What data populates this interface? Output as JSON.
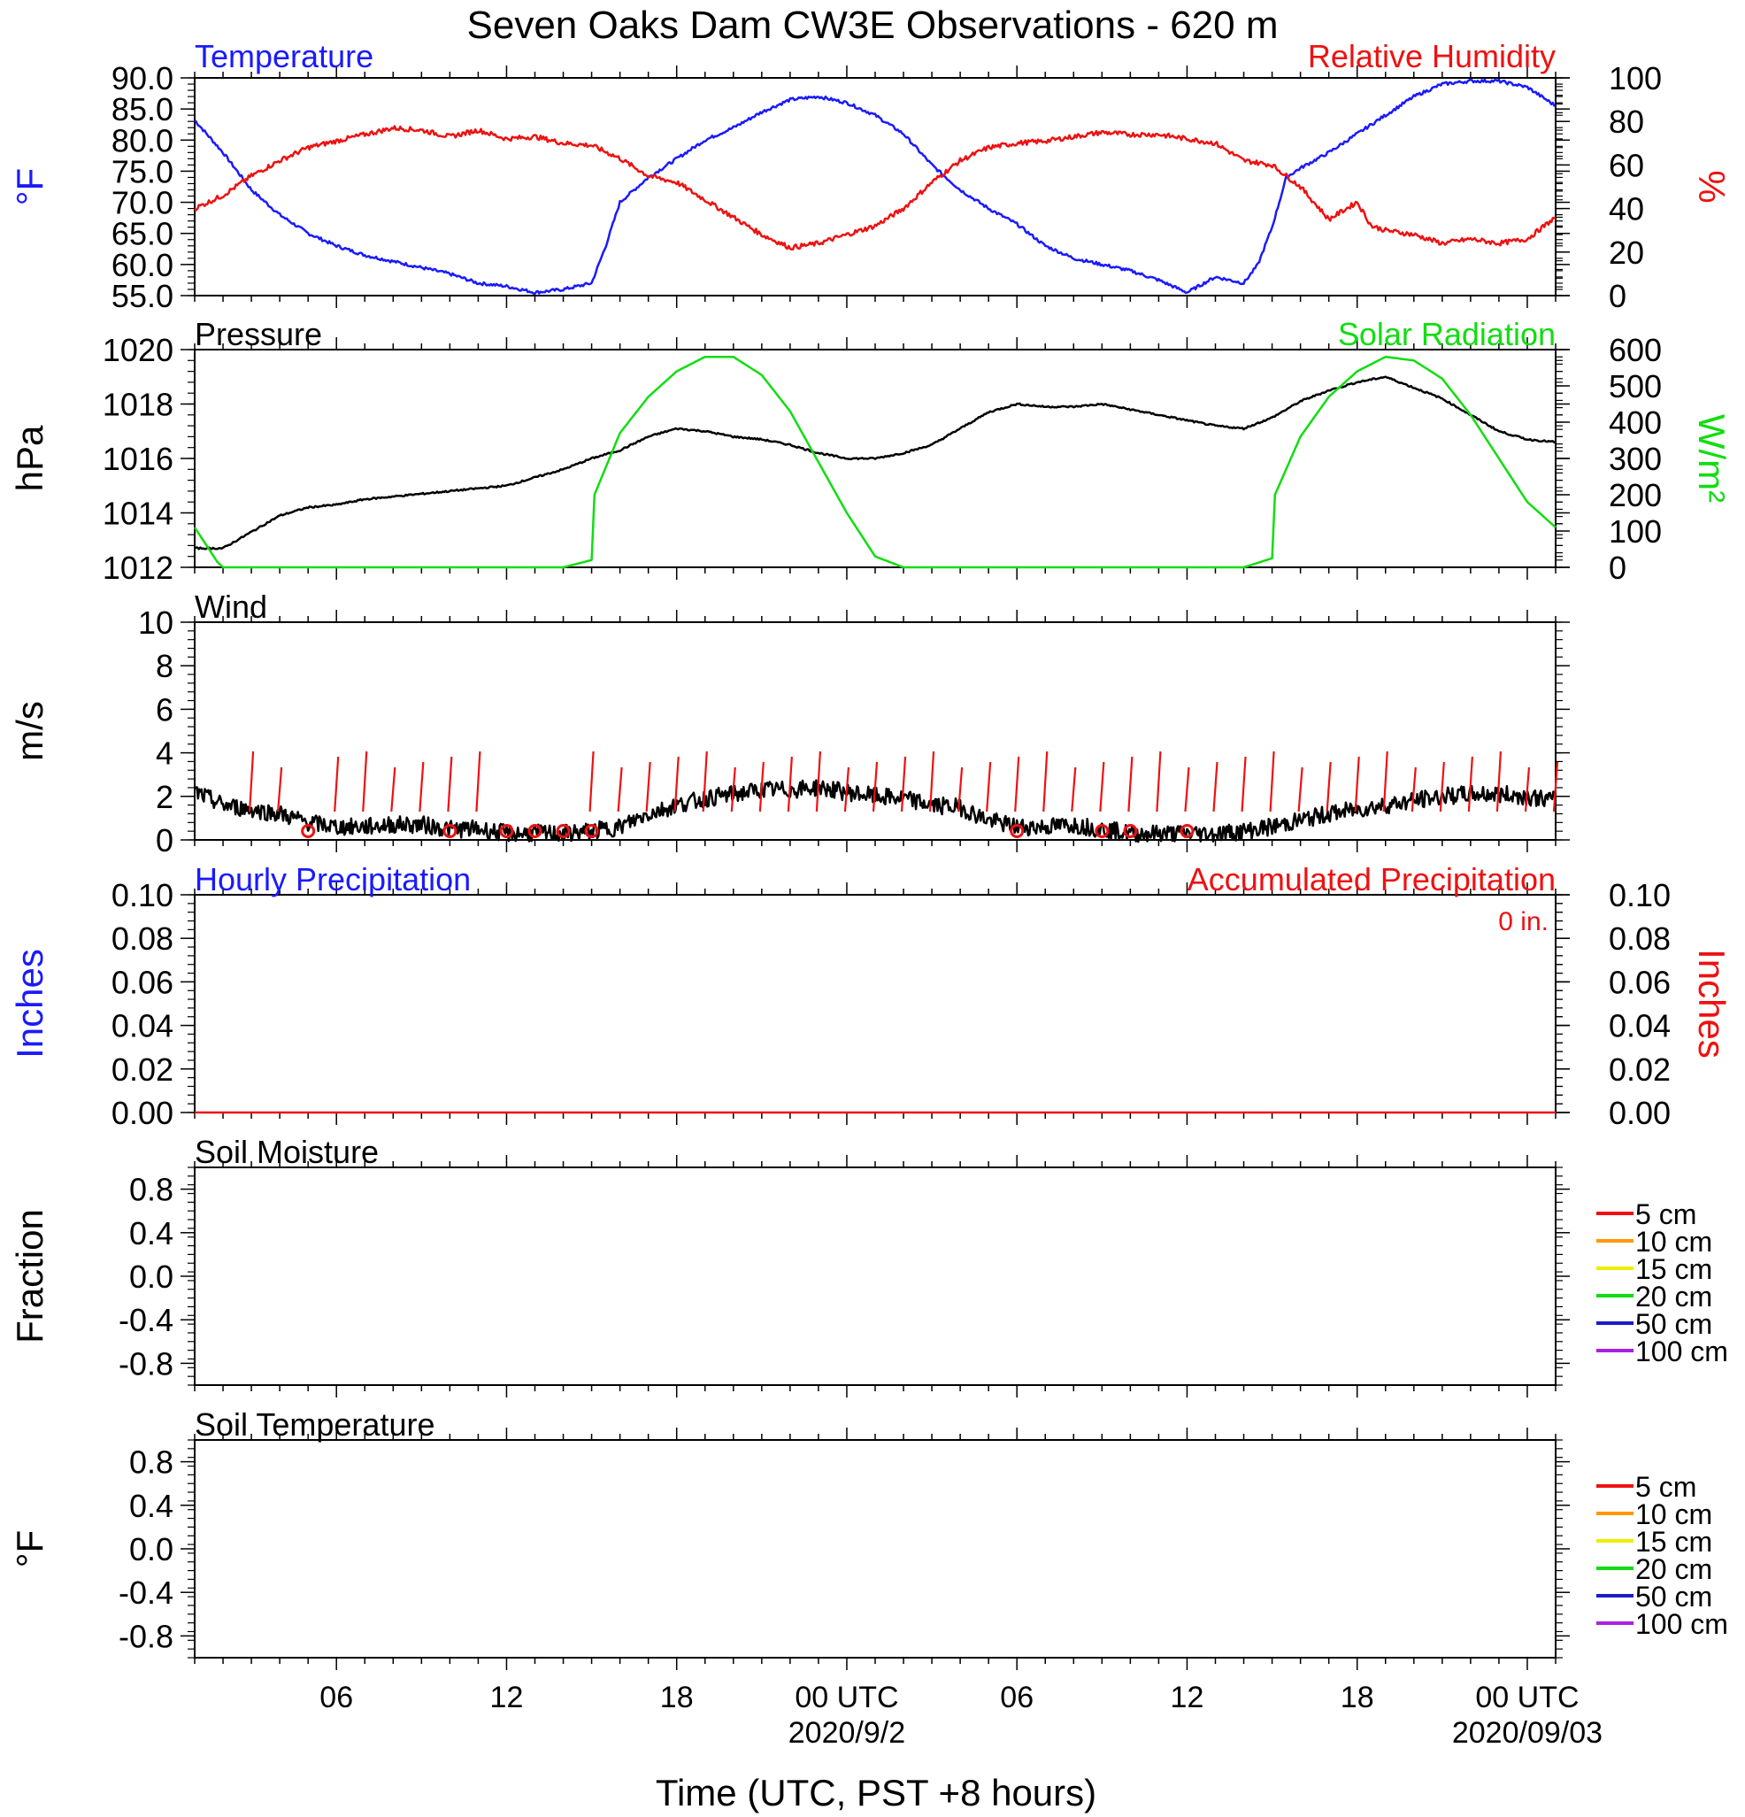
{
  "title": "Seven Oaks Dam CW3E Observations - 620 m",
  "x_axis": {
    "label": "Time (UTC, PST +8 hours)",
    "ticks": [
      {
        "t": 6,
        "label": "06"
      },
      {
        "t": 12,
        "label": "12"
      },
      {
        "t": 18,
        "label": "18"
      },
      {
        "t": 24,
        "label": "00 UTC"
      },
      {
        "t": 30,
        "label": "06"
      },
      {
        "t": 36,
        "label": "12"
      },
      {
        "t": 42,
        "label": "18"
      },
      {
        "t": 48,
        "label": "00 UTC"
      }
    ],
    "dates": [
      {
        "t": 24,
        "label": "2020/9/2"
      },
      {
        "t": 48,
        "label": "2020/09/03"
      }
    ],
    "range_hours": [
      1,
      49
    ]
  },
  "colors": {
    "blue": "#1a1aff",
    "red": "#ee1111",
    "green": "#11dd11",
    "black": "#000000"
  },
  "chart_data": [
    {
      "type": "line",
      "panel": "temperature_humidity",
      "left_title": "Temperature",
      "right_title": "Relative Humidity",
      "left_ylabel": "°F",
      "right_ylabel": "%",
      "left_ylim": [
        55,
        90
      ],
      "left_ticks": [
        "55.0",
        "60.0",
        "65.0",
        "70.0",
        "75.0",
        "80.0",
        "85.0",
        "90.0"
      ],
      "right_ylim": [
        0,
        100
      ],
      "right_ticks": [
        "0",
        "20",
        "40",
        "60",
        "80",
        "100"
      ],
      "series": [
        {
          "name": "Temperature",
          "axis": "left",
          "color": "#1a1aff",
          "x": [
            1,
            2,
            3,
            4,
            5,
            6,
            7,
            8,
            9,
            10,
            11,
            12,
            13,
            14,
            15,
            15.5,
            16,
            17,
            18,
            19,
            20,
            21,
            22,
            23,
            24,
            25,
            26,
            27,
            28,
            29,
            30,
            31,
            32,
            33,
            34,
            35,
            36,
            37,
            38,
            38.5,
            39,
            39.5,
            40,
            41,
            42,
            43,
            44,
            45,
            46,
            47,
            48,
            49
          ],
          "y": [
            83.2,
            78,
            72,
            68,
            65,
            63,
            61.5,
            60.5,
            59.5,
            58.5,
            57,
            56.5,
            55.5,
            56,
            57,
            63,
            70,
            74,
            77,
            80,
            82,
            84.5,
            86.5,
            87,
            86,
            84,
            81,
            76,
            72,
            69,
            66.5,
            63,
            61,
            60,
            59,
            57.5,
            55.5,
            58,
            57,
            60,
            66,
            74,
            75.5,
            78,
            81,
            84,
            87,
            89,
            89.5,
            89.5,
            88.5,
            85.5
          ]
        },
        {
          "name": "Relative Humidity",
          "axis": "right",
          "color": "#ee1111",
          "x": [
            1,
            2,
            3,
            4,
            5,
            6,
            7,
            8,
            9,
            10,
            11,
            12,
            13,
            14,
            15,
            16,
            17,
            18,
            19,
            20,
            21,
            22,
            23,
            24,
            25,
            26,
            27,
            28,
            29,
            30,
            31,
            32,
            33,
            34,
            35,
            36,
            37,
            38,
            39,
            40,
            41,
            42,
            42.5,
            43,
            44,
            45,
            46,
            47,
            48,
            49
          ],
          "y": [
            40,
            46,
            55,
            62,
            68,
            71,
            74,
            77,
            76,
            73,
            76,
            72,
            73,
            70,
            69,
            63,
            55,
            52,
            44,
            36,
            28,
            22,
            24,
            28,
            32,
            40,
            52,
            62,
            68,
            70,
            71,
            73,
            75,
            74,
            74,
            72,
            70,
            62,
            60,
            50,
            35,
            43,
            32,
            30,
            28,
            24,
            26,
            24,
            26,
            36
          ]
        }
      ]
    },
    {
      "type": "line",
      "panel": "pressure_solar",
      "left_title": "Pressure",
      "right_title": "Solar Radiation",
      "left_ylabel": "hPa",
      "right_ylabel": "W/m²",
      "left_ylim": [
        1012,
        1020
      ],
      "left_ticks": [
        "1012",
        "1014",
        "1016",
        "1018",
        "1020"
      ],
      "right_ylim": [
        0,
        600
      ],
      "right_ticks": [
        "0",
        "100",
        "200",
        "300",
        "400",
        "500",
        "600"
      ],
      "series": [
        {
          "name": "Pressure",
          "axis": "left",
          "color": "#000000",
          "x": [
            1,
            2,
            3,
            4,
            5,
            6,
            7,
            8,
            9,
            10,
            11,
            12,
            13,
            14,
            15,
            16,
            17,
            18,
            19,
            20,
            21,
            22,
            23,
            24,
            25,
            26,
            27,
            28,
            29,
            30,
            31,
            32,
            33,
            34,
            35,
            36,
            37,
            38,
            39,
            40,
            41,
            42,
            43,
            44,
            45,
            46,
            47,
            48,
            49
          ],
          "y": [
            1012.7,
            1012.7,
            1013.3,
            1013.9,
            1014.2,
            1014.3,
            1014.5,
            1014.6,
            1014.7,
            1014.8,
            1014.9,
            1015.0,
            1015.3,
            1015.6,
            1016.0,
            1016.3,
            1016.8,
            1017.1,
            1017.0,
            1016.8,
            1016.7,
            1016.5,
            1016.2,
            1016.0,
            1016.0,
            1016.2,
            1016.5,
            1017.1,
            1017.7,
            1018.0,
            1017.9,
            1017.9,
            1018.0,
            1017.8,
            1017.6,
            1017.4,
            1017.2,
            1017.1,
            1017.5,
            1018.1,
            1018.5,
            1018.8,
            1019.0,
            1018.6,
            1018.2,
            1017.6,
            1017.0,
            1016.7,
            1016.6
          ]
        },
        {
          "name": "Solar Radiation",
          "axis": "right",
          "color": "#11dd11",
          "x": [
            1,
            1.8,
            2,
            14,
            15,
            15.1,
            16,
            17,
            18,
            19,
            20,
            21,
            22,
            23,
            24,
            25,
            26,
            38,
            39,
            39.1,
            40,
            41,
            42,
            43,
            44,
            45,
            46,
            47,
            48,
            49
          ],
          "y": [
            110,
            15,
            0,
            0,
            20,
            200,
            370,
            470,
            540,
            580,
            580,
            530,
            430,
            290,
            150,
            30,
            0,
            0,
            25,
            200,
            360,
            470,
            540,
            580,
            570,
            520,
            420,
            300,
            180,
            110
          ]
        }
      ]
    },
    {
      "type": "line",
      "panel": "wind",
      "left_title": "Wind",
      "left_ylabel": "m/s",
      "left_ylim": [
        0,
        10
      ],
      "left_ticks": [
        "0",
        "2",
        "4",
        "6",
        "8",
        "10"
      ],
      "series": [
        {
          "name": "Wind",
          "axis": "left",
          "color": "#000000",
          "x": [
            1,
            2,
            3,
            4,
            5,
            6,
            7,
            8,
            9,
            10,
            11,
            12,
            13,
            14,
            15,
            16,
            17,
            18,
            19,
            20,
            21,
            22,
            23,
            24,
            25,
            26,
            27,
            28,
            29,
            30,
            31,
            32,
            33,
            34,
            35,
            36,
            37,
            38,
            39,
            40,
            41,
            42,
            43,
            44,
            45,
            46,
            47,
            48,
            49
          ],
          "y": [
            2.2,
            1.6,
            1.4,
            1.2,
            0.8,
            0.6,
            0.6,
            0.7,
            0.7,
            0.5,
            0.5,
            0.3,
            0.3,
            0.3,
            0.4,
            0.6,
            1.2,
            1.6,
            1.9,
            2.1,
            2.3,
            2.3,
            2.4,
            2.2,
            2.0,
            1.9,
            1.6,
            1.5,
            0.9,
            0.6,
            0.6,
            0.7,
            0.5,
            0.3,
            0.3,
            0.3,
            0.3,
            0.4,
            0.6,
            0.9,
            1.2,
            1.4,
            1.6,
            1.8,
            2.0,
            2.1,
            2.1,
            2.0,
            1.8
          ]
        }
      ],
      "wind_barb_hours": [
        3,
        4,
        6,
        7,
        8,
        9,
        10,
        11,
        15,
        16,
        17,
        18,
        19,
        20,
        21,
        22,
        23,
        24,
        25,
        26,
        27,
        28,
        29,
        30,
        31,
        32,
        33,
        34,
        35,
        36,
        37,
        38,
        39,
        40,
        41,
        42,
        43,
        44,
        45,
        46,
        47,
        48,
        49
      ],
      "calm_circle_hours": [
        5,
        10,
        12,
        13,
        14,
        15,
        30,
        33,
        34,
        36
      ]
    },
    {
      "type": "line",
      "panel": "precipitation",
      "left_title": "Hourly Precipitation",
      "right_title": "Accumulated Precipitation",
      "annotation": "0 in.",
      "left_ylabel": "Inches",
      "right_ylabel": "Inches",
      "left_ylim": [
        0,
        0.1
      ],
      "left_ticks": [
        "0.00",
        "0.02",
        "0.04",
        "0.06",
        "0.08",
        "0.10"
      ],
      "right_ylim": [
        0,
        0.1
      ],
      "right_ticks": [
        "0.00",
        "0.02",
        "0.04",
        "0.06",
        "0.08",
        "0.10"
      ],
      "series": [
        {
          "name": "Accumulated Precipitation",
          "axis": "right",
          "color": "#ee1111",
          "x": [
            1,
            49
          ],
          "y": [
            0,
            0
          ]
        }
      ]
    },
    {
      "type": "line",
      "panel": "soil_moisture",
      "left_title": "Soil Moisture",
      "left_ylabel": "Fraction",
      "left_ylim": [
        -1,
        1
      ],
      "left_ticks": [
        "-0.8",
        "-0.4",
        "0.0",
        "0.4",
        "0.8"
      ],
      "legend": [
        {
          "label": "5 cm",
          "color": "#ee1111"
        },
        {
          "label": "10 cm",
          "color": "#ff9900"
        },
        {
          "label": "15 cm",
          "color": "#eeee00"
        },
        {
          "label": "20 cm",
          "color": "#11dd11"
        },
        {
          "label": "50 cm",
          "color": "#1a1acc"
        },
        {
          "label": "100 cm",
          "color": "#aa22dd"
        }
      ]
    },
    {
      "type": "line",
      "panel": "soil_temperature",
      "left_title": "Soil Temperature",
      "left_ylabel": "°F",
      "left_ylim": [
        -1,
        1
      ],
      "left_ticks": [
        "-0.8",
        "-0.4",
        "0.0",
        "0.4",
        "0.8"
      ],
      "legend": [
        {
          "label": "5 cm",
          "color": "#ee1111"
        },
        {
          "label": "10 cm",
          "color": "#ff9900"
        },
        {
          "label": "15 cm",
          "color": "#eeee00"
        },
        {
          "label": "20 cm",
          "color": "#11dd11"
        },
        {
          "label": "50 cm",
          "color": "#1a1acc"
        },
        {
          "label": "100 cm",
          "color": "#aa22dd"
        }
      ]
    }
  ]
}
